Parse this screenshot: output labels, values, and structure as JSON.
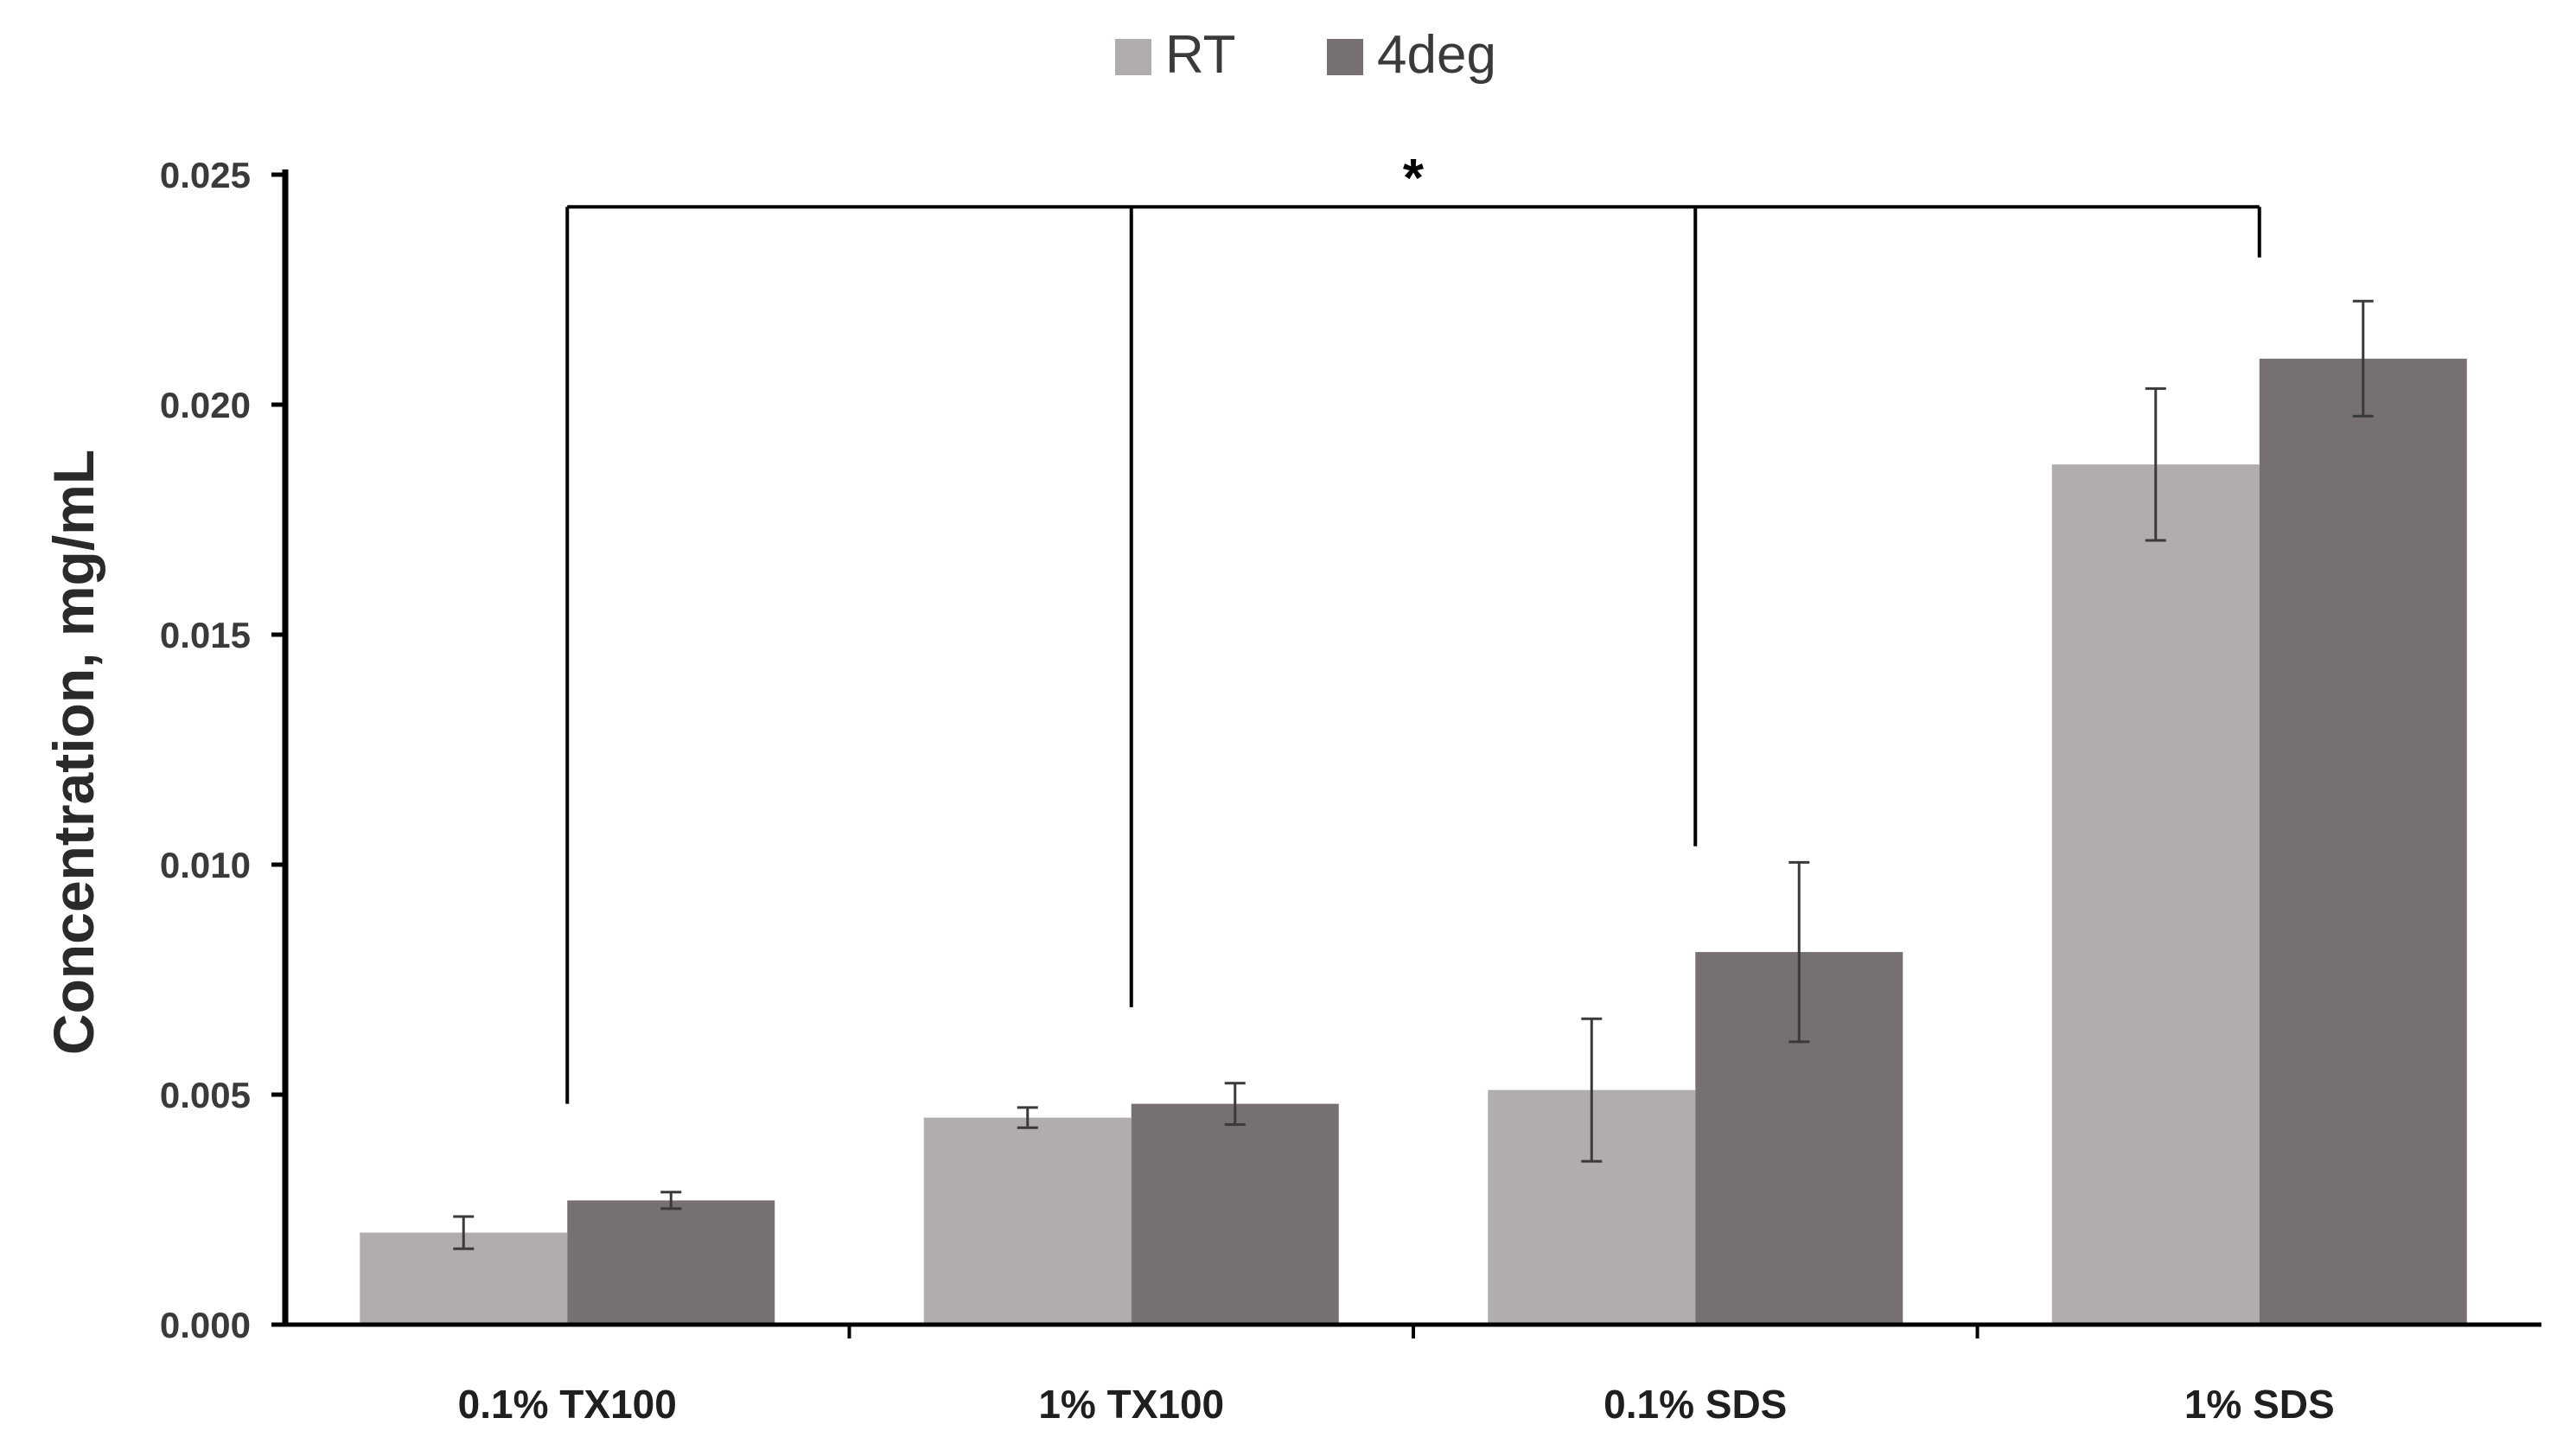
{
  "chart_data": {
    "type": "bar",
    "title": "",
    "xlabel": "",
    "ylabel": "Concentration, mg/mL",
    "ylim": [
      0,
      0.025
    ],
    "yticks": [
      0.0,
      0.005,
      0.01,
      0.015,
      0.02,
      0.025
    ],
    "ytick_labels": [
      "0.000",
      "0.005",
      "0.010",
      "0.015",
      "0.020",
      "0.025"
    ],
    "categories": [
      "0.1% TX100",
      "1% TX100",
      "0.1% SDS",
      "1% SDS"
    ],
    "grid": false,
    "legend_position": "top-center",
    "series": [
      {
        "name": "RT",
        "color": "#b0adac",
        "values": [
          0.002,
          0.0045,
          0.0051,
          0.0187
        ],
        "errors": [
          0.00035,
          0.00022,
          0.00155,
          0.00165
        ]
      },
      {
        "name": "4deg",
        "color": "#767070",
        "values": [
          0.0027,
          0.0048,
          0.0081,
          0.021
        ],
        "errors": [
          0.00018,
          0.00045,
          0.00195,
          0.00125
        ]
      }
    ],
    "annotations": [
      {
        "type": "significance-bracket",
        "label": "*",
        "level": 0.0243,
        "drops": [
          {
            "category": "0.1% TX100",
            "to": 0.0048
          },
          {
            "category": "1% TX100",
            "to": 0.0069
          },
          {
            "category": "0.1% SDS",
            "to": 0.0104
          },
          {
            "category": "1% SDS",
            "to": 0.0232
          }
        ]
      }
    ]
  }
}
